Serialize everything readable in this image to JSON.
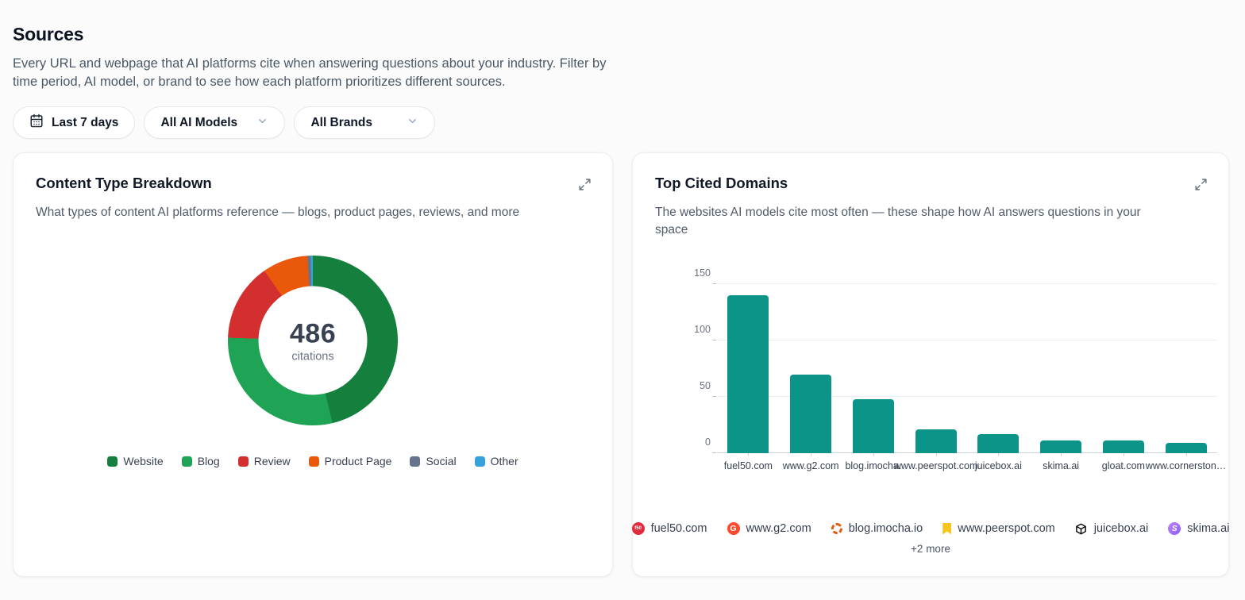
{
  "page": {
    "title": "Sources",
    "description": "Every URL and webpage that AI platforms cite when answering questions about your industry. Filter by time period, AI model, or brand to see how each platform prioritizes different sources."
  },
  "filters": {
    "date_range_label": "Last 7 days",
    "model_dropdown_value": "All AI Models",
    "brand_dropdown_value": "All Brands"
  },
  "content_type_card": {
    "title": "Content Type Breakdown",
    "subtitle": "What types of content AI platforms reference — blogs, product pages, reviews, and more",
    "center_value": "486",
    "center_label": "citations"
  },
  "top_domains_card": {
    "title": "Top Cited Domains",
    "subtitle": "The websites AI models cite most often — these shape how AI answers questions in your space",
    "more_label": "+2 more"
  },
  "chart_data": [
    {
      "type": "pie",
      "title": "Content Type Breakdown",
      "total": 486,
      "center_label": "citations",
      "labels": [
        "Website",
        "Blog",
        "Review",
        "Product Page",
        "Social",
        "Other"
      ],
      "values": [
        225,
        142,
        72,
        42,
        3,
        2
      ],
      "colors": [
        "#15803d",
        "#1fa455",
        "#d32f2f",
        "#ea580c",
        "#64748b",
        "#35a2d9"
      ],
      "donut": true,
      "legend_position": "bottom"
    },
    {
      "type": "bar",
      "title": "Top Cited Domains",
      "categories": [
        "fuel50.com",
        "www.g2.com",
        "blog.imocha.",
        "www.peerspot.com",
        "juicebox.ai",
        "skima.ai",
        "gloat.com",
        "www.cornerston…"
      ],
      "values": [
        140,
        70,
        48,
        21,
        17,
        11,
        11,
        9
      ],
      "bar_color": "#0d9488",
      "ylabel": "",
      "xlabel": "",
      "ylim": [
        0,
        150
      ],
      "yticks": [
        0,
        50,
        100,
        150
      ],
      "grid": true,
      "legend": [
        {
          "domain": "fuel50.com",
          "icon": "fuel50-favicon",
          "color": "#e02b3c",
          "glyph": "f50"
        },
        {
          "domain": "www.g2.com",
          "icon": "g2-favicon",
          "color": "#ff492c",
          "glyph": "G"
        },
        {
          "domain": "blog.imocha.io",
          "icon": "imocha-favicon",
          "color": "#e8590c",
          "glyph": ""
        },
        {
          "domain": "www.peerspot.com",
          "icon": "peerspot-favicon",
          "color": "#f7c51e",
          "glyph": ""
        },
        {
          "domain": "juicebox.ai",
          "icon": "juicebox-favicon",
          "color": "#111111",
          "glyph": ""
        },
        {
          "domain": "skima.ai",
          "icon": "skima-favicon",
          "color": "#a855f7",
          "glyph": "S"
        }
      ],
      "legend_more": "+2 more"
    }
  ]
}
